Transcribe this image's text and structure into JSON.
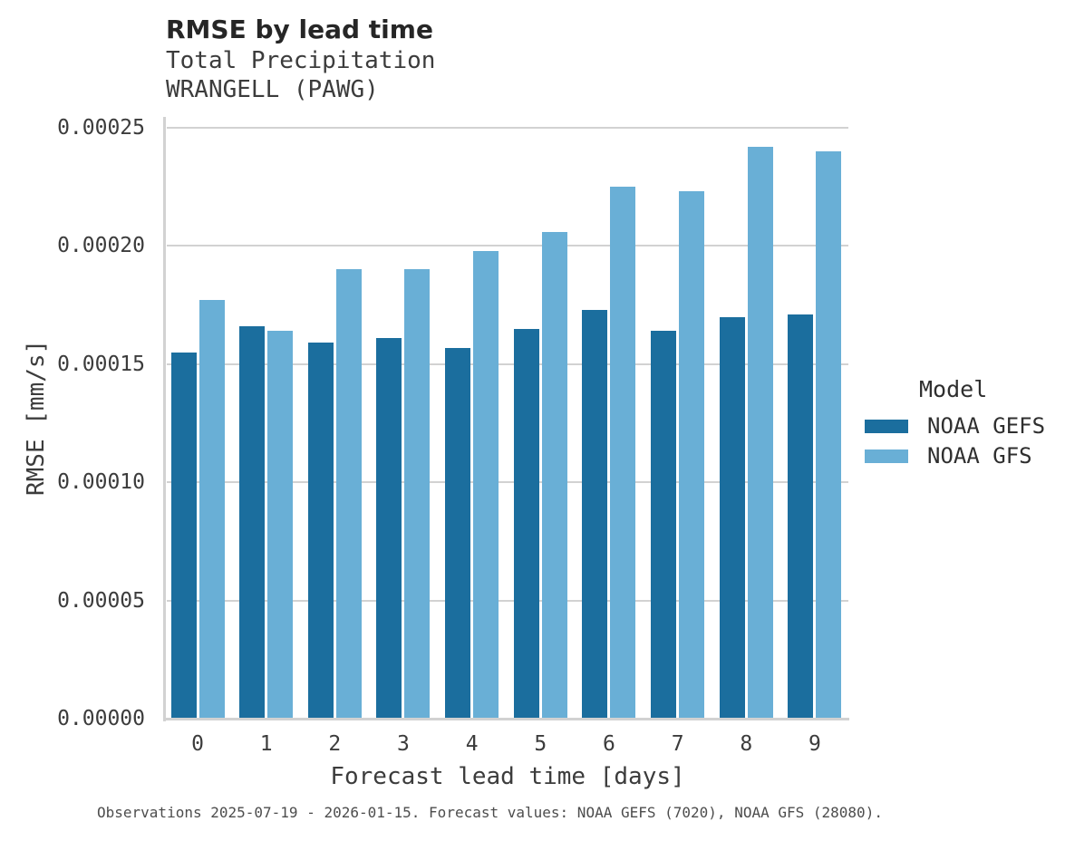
{
  "header": {
    "title": "RMSE by lead time",
    "subtitle_line1": "Total Precipitation",
    "subtitle_line2": "WRANGELL (PAWG)"
  },
  "legend": {
    "title": "Model",
    "items": [
      {
        "label": "NOAA GEFS",
        "color": "#1b6e9e"
      },
      {
        "label": "NOAA GFS",
        "color": "#69afd6"
      }
    ]
  },
  "caption": "Observations 2025-07-19 - 2026-01-15. Forecast values: NOAA GEFS (7020), NOAA GFS (28080).",
  "chart_data": {
    "type": "bar",
    "title": "RMSE by lead time",
    "subtitle": [
      "Total Precipitation",
      "WRANGELL (PAWG)"
    ],
    "xlabel": "Forecast lead time [days]",
    "ylabel": "RMSE [mm/s]",
    "categories": [
      "0",
      "1",
      "2",
      "3",
      "4",
      "5",
      "6",
      "7",
      "8",
      "9"
    ],
    "series": [
      {
        "name": "NOAA GEFS",
        "color": "#1b6e9e",
        "values": [
          0.000155,
          0.000166,
          0.000159,
          0.000161,
          0.000157,
          0.000165,
          0.000173,
          0.000164,
          0.00017,
          0.000171
        ]
      },
      {
        "name": "NOAA GFS",
        "color": "#69afd6",
        "values": [
          0.000177,
          0.000164,
          0.00019,
          0.00019,
          0.000198,
          0.000206,
          0.000225,
          0.000223,
          0.000242,
          0.00024
        ]
      }
    ],
    "ylim": [
      0,
      0.00025
    ],
    "yticks": [
      0,
      5e-05,
      0.0001,
      0.00015,
      0.0002,
      0.00025
    ],
    "ytick_labels": [
      "0.00000",
      "0.00005",
      "0.00010",
      "0.00015",
      "0.00020",
      "0.00025"
    ],
    "grid": true,
    "legend_position": "right",
    "legend_title": "Model"
  }
}
